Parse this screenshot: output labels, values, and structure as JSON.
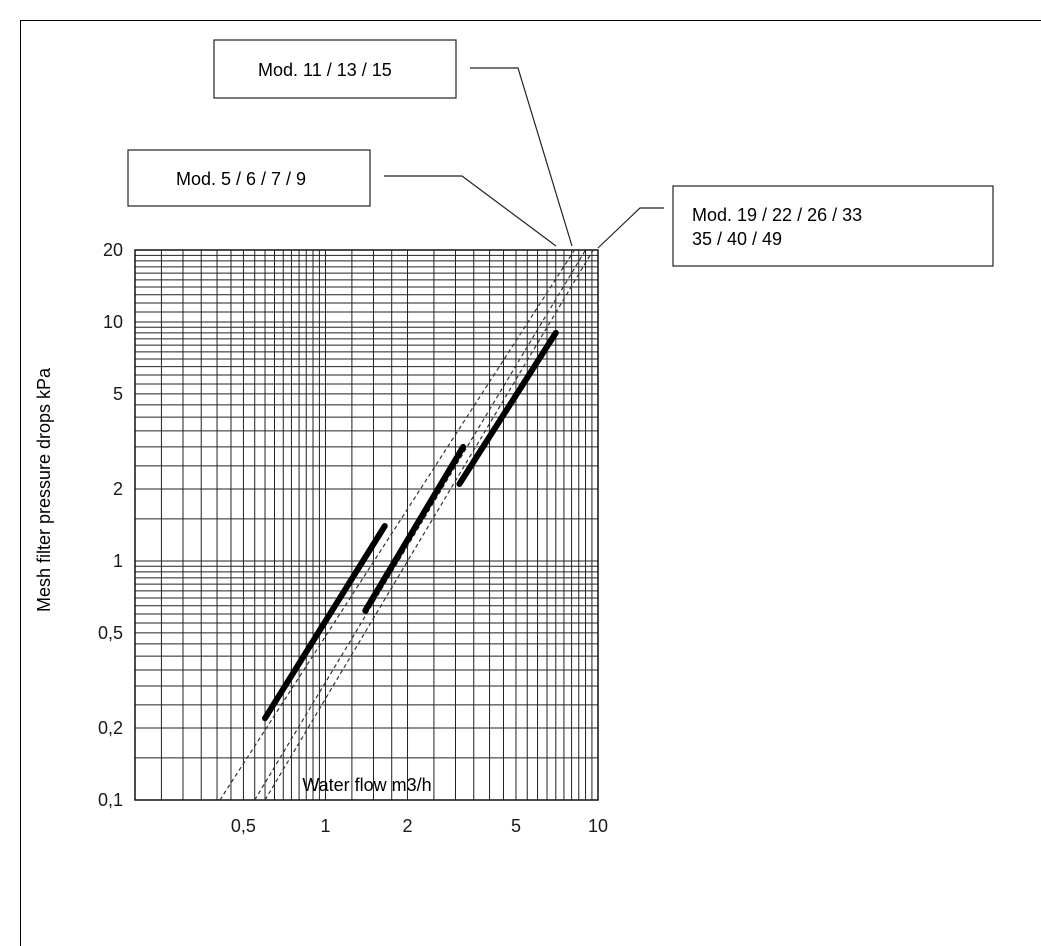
{
  "chart_data": {
    "type": "line",
    "xscale": "log",
    "yscale": "log",
    "xlabel": "Water flow m3/h",
    "ylabel": "Mesh filter pressure drops kPa",
    "xlim": [
      0.2,
      10
    ],
    "ylim": [
      0.1,
      20
    ],
    "grid": true,
    "x_tick_labels": [
      "0,5",
      "1",
      "2",
      "5",
      "10"
    ],
    "x_ticks": [
      0.5,
      1,
      2,
      5,
      10
    ],
    "y_tick_labels": [
      "0,1",
      "0,2",
      "0,5",
      "1",
      "2",
      "5",
      "10",
      "20"
    ],
    "y_ticks": [
      0.1,
      0.2,
      0.5,
      1,
      2,
      5,
      10,
      20
    ],
    "series": [
      {
        "name": "Mod. 5 / 6 / 7 / 9",
        "operating_x": [
          0.6,
          1.65
        ],
        "operating_y": [
          0.22,
          1.4
        ],
        "extrapolated_x": [
          0.41,
          8.2
        ],
        "extrapolated_y": [
          0.1,
          20
        ]
      },
      {
        "name": "Mod. 11 / 13 / 15",
        "operating_x": [
          1.4,
          3.2
        ],
        "operating_y": [
          0.62,
          3.0
        ],
        "extrapolated_x": [
          0.55,
          9.0
        ],
        "extrapolated_y": [
          0.1,
          20
        ]
      },
      {
        "name": "Mod. 19 / 22 / 26 / 33\n35 / 40 / 49",
        "operating_x": [
          3.1,
          7.0
        ],
        "operating_y": [
          2.1,
          9.0
        ],
        "extrapolated_x": [
          0.6,
          9.6
        ],
        "extrapolated_y": [
          0.1,
          20
        ]
      }
    ],
    "callouts": [
      {
        "lines": [
          "Mod. 11 / 13 / 15"
        ],
        "series": 1
      },
      {
        "lines": [
          "Mod. 5 / 6 / 7 / 9"
        ],
        "series": 0
      },
      {
        "lines": [
          "Mod. 19 / 22 / 26 / 33",
          "35 / 40 / 49"
        ],
        "series": 2
      }
    ]
  }
}
